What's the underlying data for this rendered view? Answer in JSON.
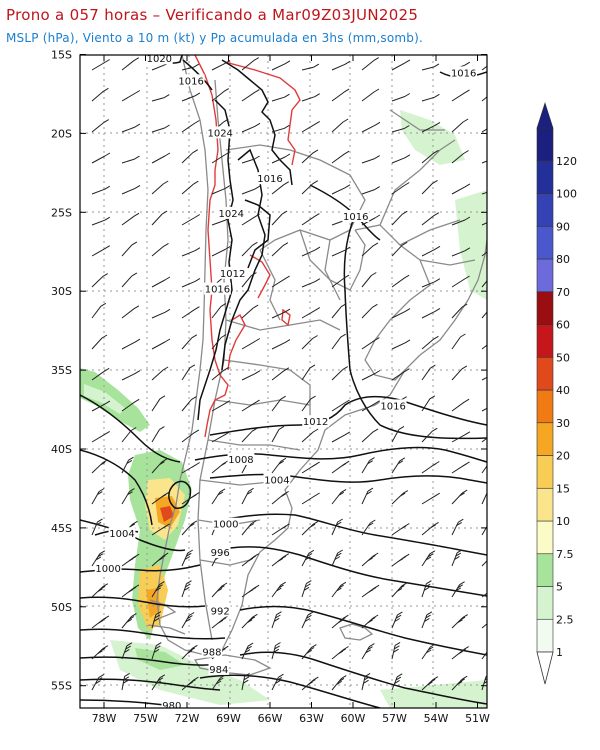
{
  "header": {
    "title": "Prono a 057 horas – Verificando a Mar09Z03JUN2025",
    "subtitle": "MSLP (hPa), Viento a 10 m (kt) y Pp acumulada en 3hs (mm,somb)."
  },
  "map": {
    "lat_ticks": [
      "15S",
      "20S",
      "25S",
      "30S",
      "35S",
      "40S",
      "45S",
      "50S",
      "55S"
    ],
    "lon_ticks": [
      "78W",
      "75W",
      "72W",
      "69W",
      "66W",
      "63W",
      "60W",
      "57W",
      "54W",
      "51W"
    ],
    "isobar_labels": [
      {
        "text": "1020",
        "lon": -74.0,
        "lat": -15.3
      },
      {
        "text": "1016",
        "lon": -71.7,
        "lat": -16.7
      },
      {
        "text": "1016",
        "lon": -52.0,
        "lat": -16.2
      },
      {
        "text": "1024",
        "lon": -69.6,
        "lat": -20.0
      },
      {
        "text": "1016",
        "lon": -66.0,
        "lat": -22.9
      },
      {
        "text": "1024",
        "lon": -68.8,
        "lat": -25.1
      },
      {
        "text": "1016",
        "lon": -59.8,
        "lat": -25.3
      },
      {
        "text": "1012",
        "lon": -68.7,
        "lat": -28.9
      },
      {
        "text": "1016",
        "lon": -69.8,
        "lat": -29.9
      },
      {
        "text": "1016",
        "lon": -57.1,
        "lat": -37.3
      },
      {
        "text": "1012",
        "lon": -62.7,
        "lat": -38.3
      },
      {
        "text": "1008",
        "lon": -68.1,
        "lat": -40.7
      },
      {
        "text": "1004",
        "lon": -65.5,
        "lat": -42.0
      },
      {
        "text": "1000",
        "lon": -69.2,
        "lat": -44.8
      },
      {
        "text": "1004",
        "lon": -76.7,
        "lat": -45.4
      },
      {
        "text": "996",
        "lon": -69.6,
        "lat": -46.6
      },
      {
        "text": "1000",
        "lon": -77.7,
        "lat": -47.6
      },
      {
        "text": "992",
        "lon": -69.6,
        "lat": -50.3
      },
      {
        "text": "988",
        "lon": -70.2,
        "lat": -52.9
      },
      {
        "text": "984",
        "lon": -69.7,
        "lat": -54.0
      },
      {
        "text": "980",
        "lon": -73.1,
        "lat": -56.3
      }
    ]
  },
  "colorbar": {
    "levels": [
      "1",
      "2.5",
      "5",
      "7.5",
      "10",
      "15",
      "20",
      "30",
      "40",
      "50",
      "60",
      "70",
      "80",
      "90",
      "100",
      "120"
    ],
    "colors": [
      "#f2fbef",
      "#d5f3cf",
      "#a8e39c",
      "#fbfbc8",
      "#fbe58c",
      "#f7cd55",
      "#f5a623",
      "#f07a14",
      "#e0491b",
      "#c5171b",
      "#9a0d10",
      "#6d6bdc",
      "#4b57cc",
      "#3442b4",
      "#24309a",
      "#1b1f7e"
    ]
  }
}
